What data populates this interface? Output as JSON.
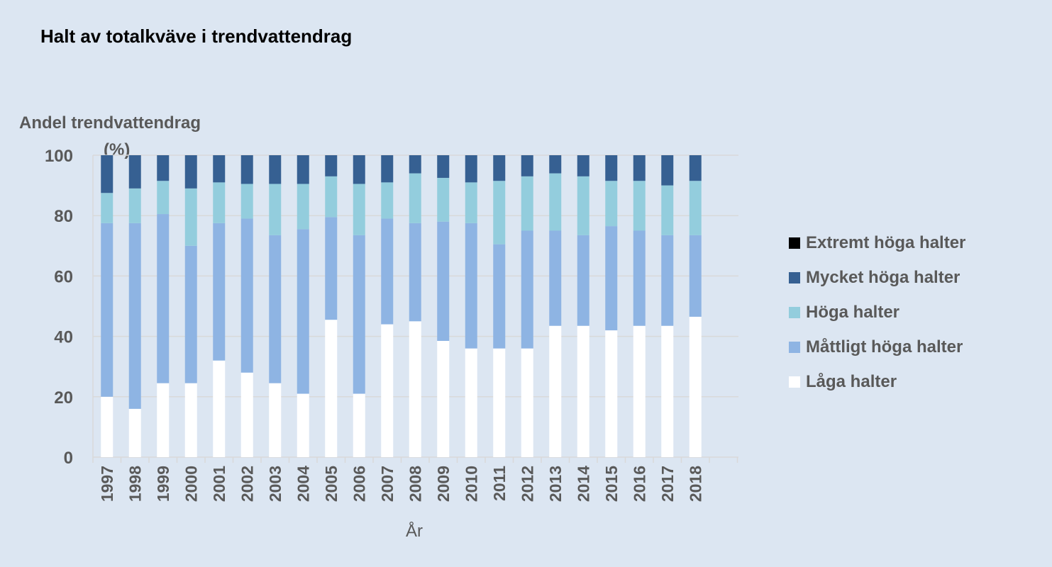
{
  "chart_data": {
    "type": "bar",
    "stacked": true,
    "title": "Halt av totalkväve i trendvattendrag",
    "ylabel": "Andel trendvattendrag",
    "ylabel_unit": "(%)",
    "xlabel": "År",
    "ylim": [
      0,
      100
    ],
    "yticks": [
      0,
      20,
      40,
      60,
      80,
      100
    ],
    "grid": true,
    "legend_position": "right",
    "categories": [
      "1997",
      "1998",
      "1999",
      "2000",
      "2001",
      "2002",
      "2003",
      "2004",
      "2005",
      "2006",
      "2007",
      "2008",
      "2009",
      "2010",
      "2011",
      "2012",
      "2013",
      "2014",
      "2015",
      "2016",
      "2017",
      "2018"
    ],
    "series": [
      {
        "name": "Låga halter",
        "color": "#ffffff",
        "values": [
          20,
          16,
          24.5,
          24.5,
          32,
          28,
          24.5,
          21,
          45.5,
          21,
          44,
          45,
          38.5,
          36,
          36,
          36,
          43.5,
          43.5,
          42,
          43.5,
          43.5,
          46.5
        ]
      },
      {
        "name": "Måttligt höga halter",
        "color": "#8eb4e3",
        "values": [
          57.5,
          61.5,
          56,
          45.5,
          45.5,
          51,
          49,
          54.5,
          34,
          52.5,
          35,
          32.5,
          39.5,
          41.5,
          34.5,
          39,
          31.5,
          30,
          34.5,
          31.5,
          30,
          27
        ]
      },
      {
        "name": "Höga halter",
        "color": "#93cddd",
        "values": [
          10,
          11.5,
          11,
          19,
          13.5,
          11.5,
          17,
          15,
          13.5,
          17,
          12,
          16.5,
          14.5,
          13.5,
          21,
          18,
          19,
          19.5,
          15,
          16.5,
          16.5,
          18
        ]
      },
      {
        "name": "Mycket höga halter",
        "color": "#366092",
        "values": [
          12.5,
          11,
          8.5,
          11,
          9,
          9.5,
          9.5,
          9.5,
          7,
          9.5,
          9,
          6,
          7.5,
          9,
          8.5,
          7,
          6,
          7,
          8.5,
          8.5,
          10,
          8.5
        ]
      },
      {
        "name": "Extremt höga halter",
        "color": "#000000",
        "values": [
          0,
          0,
          0,
          0,
          0,
          0,
          0,
          0,
          0,
          0,
          0,
          0,
          0,
          0,
          0,
          0,
          0,
          0,
          0,
          0,
          0,
          0
        ]
      }
    ],
    "legend_order": [
      "Extremt höga halter",
      "Mycket höga halter",
      "Höga halter",
      "Måttligt höga halter",
      "Låga halter"
    ],
    "colors": {
      "axis_text": "#595959",
      "grid": "#d9d9d9",
      "background": "#dce6f2"
    }
  }
}
